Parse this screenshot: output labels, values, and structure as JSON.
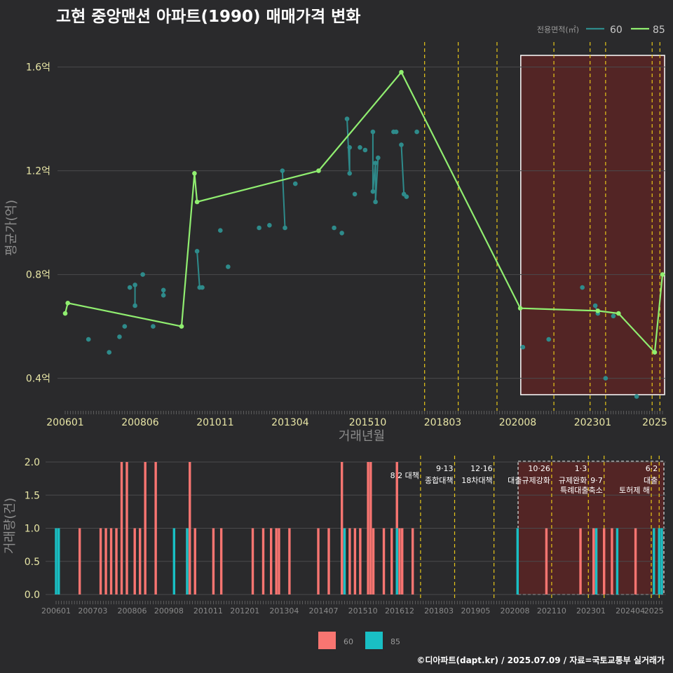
{
  "title": "고현 중앙맨션 아파트(1990) 매매가격 변화",
  "credit": "©디아파트(dapt.kr) / 2025.07.09 / 자료=국토교통부 실거래가",
  "colors": {
    "background": "#2a2a2c",
    "grid": "#4a4a4c",
    "series_60_line": "#2e8b8b",
    "series_85_line": "#90ee70",
    "bar_60": "#f87571",
    "bar_85": "#19bfc4",
    "policy_line": "#e6c619",
    "highlight_fill": "#5a2424",
    "highlight_border": "#ffffff"
  },
  "chart_data": [
    {
      "type": "line",
      "title": "고현 중앙맨션 아파트(1990) 매매가격 변화",
      "xlabel": "거래년월",
      "ylabel": "평균가(억)",
      "legend_title": "전용면적(㎡)",
      "legend_position": "top-right",
      "ylim": [
        0.28,
        1.68
      ],
      "y_ticks": [
        0.4,
        0.8,
        1.2,
        1.6
      ],
      "y_tick_labels": [
        "0.4억",
        "0.8억",
        "1.2억",
        "1.6억"
      ],
      "x_tick_labels": [
        "200601",
        "200806",
        "201011",
        "201304",
        "201510",
        "201803",
        "202008",
        "202301",
        "2025"
      ],
      "series": [
        {
          "name": "60",
          "style": "line+points",
          "points": [
            [
              "2006-10",
              0.55
            ],
            [
              "2007-06",
              0.5
            ],
            [
              "2007-10",
              0.56
            ],
            [
              "2007-12",
              0.6
            ],
            [
              "2008-02",
              0.75
            ],
            [
              "2008-04",
              0.76
            ],
            [
              "2008-04",
              0.68
            ],
            [
              "2008-07",
              0.8
            ],
            [
              "2008-11",
              0.6
            ],
            [
              "2009-03",
              0.74
            ],
            [
              "2009-03",
              0.72
            ],
            [
              "2010-04",
              0.89
            ],
            [
              "2010-05",
              0.75
            ],
            [
              "2010-06",
              0.75
            ],
            [
              "2011-01",
              0.97
            ],
            [
              "2011-04",
              0.83
            ],
            [
              "2012-04",
              0.98
            ],
            [
              "2012-08",
              0.99
            ],
            [
              "2013-01",
              1.2
            ],
            [
              "2013-02",
              0.98
            ],
            [
              "2013-06",
              1.15
            ],
            [
              "2014-09",
              0.98
            ],
            [
              "2014-12",
              0.96
            ],
            [
              "2015-02",
              1.4
            ],
            [
              "2015-03",
              1.19
            ],
            [
              "2015-03",
              1.29
            ],
            [
              "2015-05",
              1.11
            ],
            [
              "2015-07",
              1.29
            ],
            [
              "2015-09",
              1.28
            ],
            [
              "2015-12",
              1.35
            ],
            [
              "2015-12",
              1.12
            ],
            [
              "2016-01",
              1.23
            ],
            [
              "2016-01",
              1.08
            ],
            [
              "2016-02",
              1.25
            ],
            [
              "2016-08",
              1.35
            ],
            [
              "2016-09",
              1.35
            ],
            [
              "2016-11",
              1.3
            ],
            [
              "2016-12",
              1.11
            ],
            [
              "2017-01",
              1.1
            ],
            [
              "2017-05",
              1.35
            ],
            [
              "2020-10",
              0.52
            ],
            [
              "2021-08",
              0.55
            ],
            [
              "2022-09",
              0.75
            ],
            [
              "2023-02",
              0.68
            ],
            [
              "2023-03",
              0.65
            ],
            [
              "2023-06",
              0.4
            ],
            [
              "2023-09",
              0.64
            ],
            [
              "2024-06",
              0.33
            ]
          ]
        },
        {
          "name": "85",
          "style": "line+points",
          "points": [
            [
              "2006-01",
              0.65
            ],
            [
              "2006-02",
              0.69
            ],
            [
              "2009-10",
              0.6
            ],
            [
              "2010-03",
              1.19
            ],
            [
              "2010-04",
              1.08
            ],
            [
              "2014-03",
              1.2
            ],
            [
              "2016-11",
              1.58
            ],
            [
              "2020-09",
              0.67
            ],
            [
              "2023-03",
              0.66
            ],
            [
              "2023-11",
              0.65
            ],
            [
              "2025-01",
              0.5
            ],
            [
              "2025-04",
              0.8
            ]
          ]
        }
      ],
      "highlight_range": [
        "2020-10",
        "2025-04"
      ],
      "policy_dates": [
        "2017-08",
        "2018-09",
        "2019-12",
        "2021-10",
        "2022-12",
        "2023-06",
        "2024-12",
        "2025-03"
      ]
    },
    {
      "type": "bar",
      "xlabel": "",
      "ylabel": "거래량(건)",
      "legend_position": "bottom",
      "ylim": [
        0,
        2.0
      ],
      "y_ticks": [
        0.0,
        0.5,
        1.0,
        1.5,
        2.0
      ],
      "y_tick_labels": [
        "0.0",
        "0.5",
        "1.0",
        "1.5",
        "2.0"
      ],
      "x_tick_labels": [
        "200601",
        "200703",
        "200806",
        "200908",
        "201011",
        "201201",
        "201304",
        "201407",
        "201510",
        "201612",
        "201803",
        "201905",
        "202008",
        "202110",
        "202301",
        "202404",
        "2025"
      ],
      "series": [
        {
          "name": "60",
          "bars": [
            [
              "2006-10",
              1
            ],
            [
              "2007-06",
              1
            ],
            [
              "2007-08",
              1
            ],
            [
              "2007-10",
              1
            ],
            [
              "2007-12",
              1
            ],
            [
              "2008-02",
              2
            ],
            [
              "2008-04",
              2
            ],
            [
              "2008-07",
              1
            ],
            [
              "2008-09",
              1
            ],
            [
              "2008-11",
              2
            ],
            [
              "2009-03",
              2
            ],
            [
              "2010-03",
              1
            ],
            [
              "2010-04",
              2
            ],
            [
              "2010-06",
              1
            ],
            [
              "2011-01",
              1
            ],
            [
              "2011-04",
              1
            ],
            [
              "2012-04",
              1
            ],
            [
              "2012-08",
              1
            ],
            [
              "2012-11",
              1
            ],
            [
              "2013-01",
              1
            ],
            [
              "2013-02",
              1
            ],
            [
              "2013-06",
              1
            ],
            [
              "2014-05",
              1
            ],
            [
              "2014-09",
              1
            ],
            [
              "2015-02",
              2
            ],
            [
              "2015-03",
              1
            ],
            [
              "2015-05",
              1
            ],
            [
              "2015-07",
              1
            ],
            [
              "2015-09",
              1
            ],
            [
              "2015-12",
              2
            ],
            [
              "2016-01",
              2
            ],
            [
              "2016-02",
              1
            ],
            [
              "2016-06",
              1
            ],
            [
              "2016-09",
              1
            ],
            [
              "2016-11",
              2
            ],
            [
              "2016-12",
              1
            ],
            [
              "2017-01",
              1
            ],
            [
              "2017-05",
              1
            ],
            [
              "2021-08",
              1
            ],
            [
              "2022-09",
              1
            ],
            [
              "2023-02",
              1
            ],
            [
              "2023-03",
              1
            ],
            [
              "2023-06",
              1
            ],
            [
              "2023-09",
              1
            ],
            [
              "2024-06",
              1
            ]
          ]
        },
        {
          "name": "85",
          "bars": [
            [
              "2006-01",
              1
            ],
            [
              "2006-02",
              1
            ],
            [
              "2009-10",
              1
            ],
            [
              "2010-03",
              1
            ],
            [
              "2015-03",
              1
            ],
            [
              "2016-11",
              1
            ],
            [
              "2020-09",
              1
            ],
            [
              "2023-03",
              1
            ],
            [
              "2023-11",
              1
            ],
            [
              "2025-01",
              1
            ],
            [
              "2025-03",
              1
            ],
            [
              "2025-04",
              1
            ]
          ]
        }
      ],
      "highlight_range": [
        "2020-10",
        "2025-04"
      ],
      "policies": [
        {
          "date": "2017-08",
          "date_label": "",
          "label": "8·2 대책"
        },
        {
          "date": "2018-09",
          "date_label": "9·13",
          "label": "종합대책"
        },
        {
          "date": "2019-12",
          "date_label": "12·16",
          "label": "18차대책"
        },
        {
          "date": "2021-10",
          "date_label": "10·26",
          "label": "대출규제강화"
        },
        {
          "date": "2022-12",
          "date_label": "1·3",
          "label": "규제완화"
        },
        {
          "date": "2023-06",
          "date_label": "9·7",
          "label": "특례대출축소"
        },
        {
          "date": "2024-12",
          "date_label": "",
          "label": "토허제 해"
        },
        {
          "date": "2025-03",
          "date_label": "6·2",
          "label": "대출"
        }
      ]
    }
  ]
}
